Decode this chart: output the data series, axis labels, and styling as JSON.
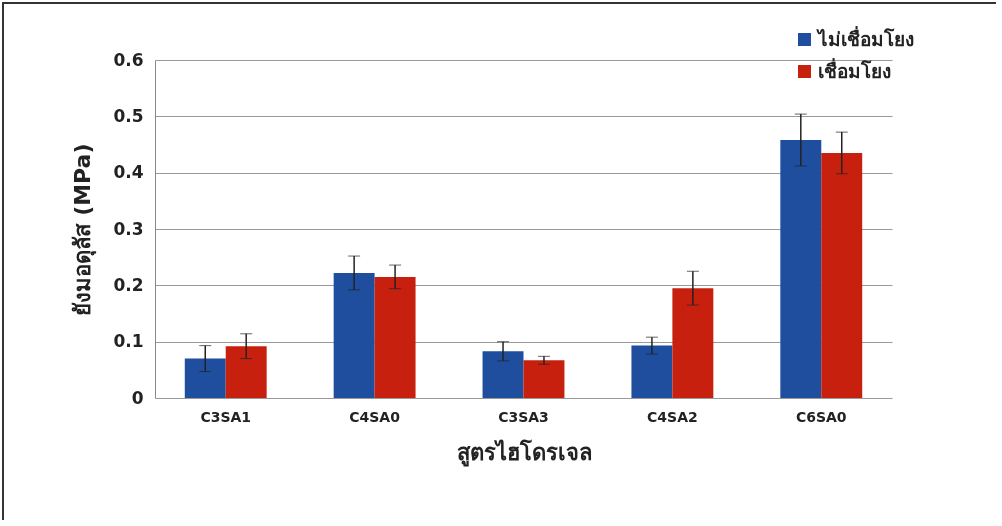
{
  "chart_data": {
    "type": "bar",
    "xlabel": "สูตรไฮโดรเจล",
    "ylabel": "ยังมอดุลัส (MPa)",
    "categories": [
      "C3SA1",
      "C4SA0",
      "C3SA3",
      "C4SA2",
      "C6SA0"
    ],
    "series": [
      {
        "name": "ไม่เชื่อมโยง",
        "color": "#1f4e9e",
        "values": [
          0.07,
          0.222,
          0.083,
          0.093,
          0.458
        ],
        "errors": [
          0.023,
          0.03,
          0.017,
          0.015,
          0.046
        ]
      },
      {
        "name": "เชื่อมโยง",
        "color": "#c8200e",
        "values": [
          0.092,
          0.215,
          0.067,
          0.195,
          0.435
        ],
        "errors": [
          0.022,
          0.021,
          0.007,
          0.03,
          0.037
        ]
      }
    ],
    "ylim": [
      0,
      0.6
    ],
    "yticks": [
      0,
      0.1,
      0.2,
      0.3,
      0.4,
      0.5,
      0.6
    ],
    "grid": "y",
    "legend": "top right"
  }
}
